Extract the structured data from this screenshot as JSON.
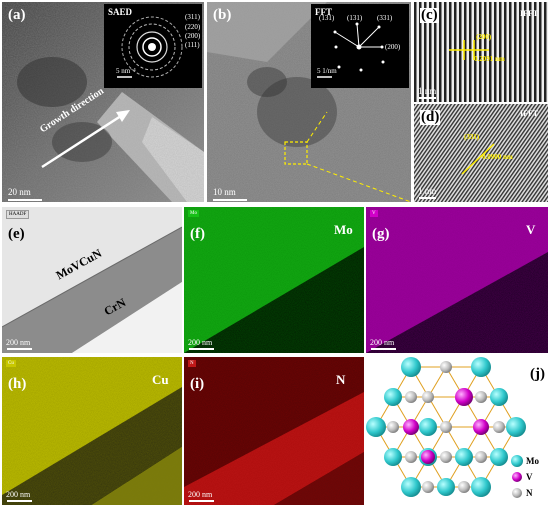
{
  "panels": {
    "a": {
      "label": "(a)",
      "inset_title": "SAED",
      "rings": [
        "(311)",
        "(220)",
        "(200)",
        "(111)"
      ],
      "inset_scale": "5 nm⁻¹",
      "growth": "Growth direction",
      "scale": "20 nm"
    },
    "b": {
      "label": "(b)",
      "inset_title": "FFT",
      "spots": [
        "(131)",
        "(131)",
        "(331)",
        "(200)"
      ],
      "inset_scale": "5 1/nm",
      "scale": "10 nm"
    },
    "c": {
      "label": "(c)",
      "title": "IFFT",
      "plane": "(200)",
      "d": "0.2091 nm",
      "scale": "1 nm"
    },
    "d": {
      "label": "(d)",
      "title": "IFFT",
      "plane": "(331)",
      "d": "0.0900 nm",
      "scale": "1 nm"
    },
    "e": {
      "label": "(e)",
      "tag": "HAADF",
      "layer1": "MoVCuN",
      "layer2": "CrN",
      "scale": "200 nm"
    },
    "f": {
      "label": "(f)",
      "tag": "Mo",
      "element": "Mo",
      "scale": "200 nm"
    },
    "g": {
      "label": "(g)",
      "tag": "V",
      "element": "V",
      "scale": "200 nm"
    },
    "h": {
      "label": "(h)",
      "tag": "Cu",
      "element": "Cu",
      "scale": "200 nm"
    },
    "i": {
      "label": "(i)",
      "tag": "N",
      "element": "N",
      "scale": "200 nm"
    },
    "j": {
      "label": "(j)",
      "legend": [
        "Mo",
        "V",
        "N"
      ]
    }
  },
  "colors": {
    "mo": "#3ad0d4",
    "v": "#d000c8",
    "n": "#c8c8c8",
    "bond": "#e0a020",
    "mo_map": "#16c016",
    "v_map": "#b000b0",
    "cu_map": "#c8c800",
    "n_map": "#b01818"
  }
}
